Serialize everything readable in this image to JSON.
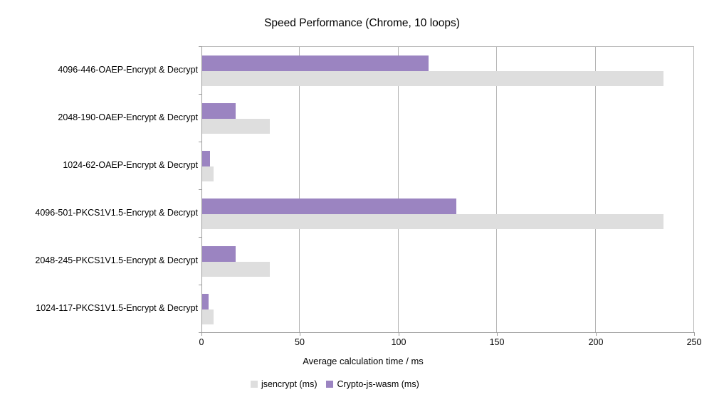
{
  "title": "Speed Performance (Chrome, 10 loops)",
  "chart_data": {
    "type": "bar",
    "orientation": "horizontal",
    "title": "Speed Performance (Chrome, 10 loops)",
    "xlabel": "Average calculation time / ms",
    "ylabel": "",
    "xlim": [
      0,
      250
    ],
    "xticks": [
      0,
      50,
      100,
      150,
      200,
      250
    ],
    "grid": true,
    "legend_position": "bottom",
    "categories": [
      "4096-446-OAEP-Encrypt & Decrypt",
      "2048-190-OAEP-Encrypt & Decrypt",
      "1024-62-OAEP-Encrypt & Decrypt",
      "4096-501-PKCS1V1.5-Encrypt & Decrypt",
      "2048-245-PKCS1V1.5-Encrypt & Decrypt",
      "1024-117-PKCS1V1.5-Encrypt & Decrypt"
    ],
    "series": [
      {
        "name": "jsencrypt (ms)",
        "color": "#dedede",
        "values": [
          234,
          34.5,
          5.7,
          234,
          34.3,
          5.9
        ]
      },
      {
        "name": "Crypto-js-wasm (ms)",
        "color": "#9b84c1",
        "values": [
          115,
          17,
          3.8,
          129,
          16.9,
          3.1
        ]
      }
    ]
  },
  "colors": {
    "jsencrypt_bar": "#dedede",
    "crypto_js_wasm_bar": "#9b84c1",
    "axis_line": "#9c9c9c",
    "gridline": "#b5b5b5",
    "text": "#000000",
    "background": "#ffffff"
  }
}
